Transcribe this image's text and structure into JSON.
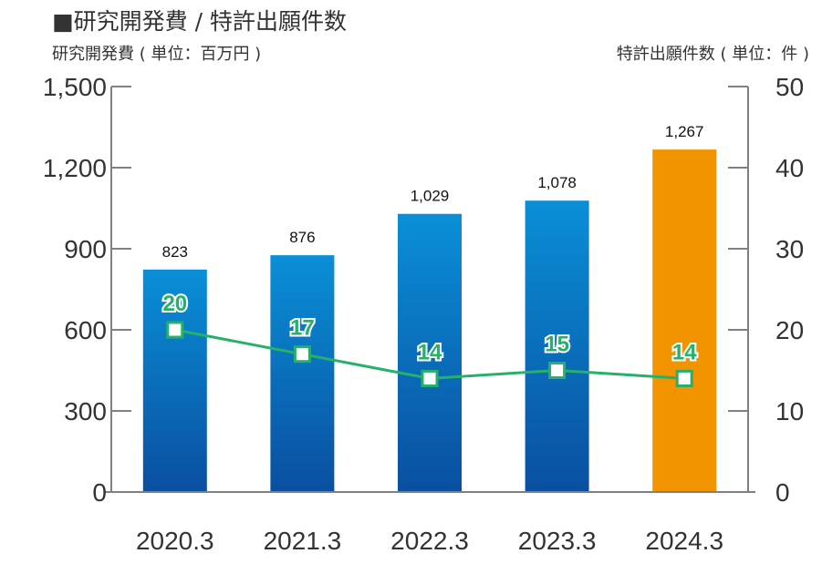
{
  "chart_data": {
    "type": "bar+line",
    "title": "■研究開発費 / 特許出願件数",
    "y_left_label": "研究開発費 ( 単位：百万円 )",
    "y_right_label": "特許出願件数 ( 単位：件 )",
    "categories": [
      "2020.3",
      "2021.3",
      "2022.3",
      "2023.3",
      "2024.3"
    ],
    "series": [
      {
        "name": "研究開発費",
        "kind": "bar",
        "axis": "left",
        "values": [
          823,
          876,
          1029,
          1078,
          1267
        ],
        "labels": [
          "823",
          "876",
          "1,029",
          "1,078",
          "1,267"
        ]
      },
      {
        "name": "特許出願件数",
        "kind": "line",
        "axis": "right",
        "values": [
          20,
          17,
          14,
          15,
          14
        ],
        "labels": [
          "20",
          "17",
          "14",
          "15",
          "14"
        ]
      }
    ],
    "y_left_ticks": [
      "0",
      "300",
      "600",
      "900",
      "1,200",
      "1,500"
    ],
    "y_left_range": [
      0,
      1500
    ],
    "y_right_ticks": [
      "0",
      "10",
      "20",
      "30",
      "40",
      "50"
    ],
    "y_right_range": [
      0,
      50
    ],
    "highlight_index": 4,
    "colors": {
      "bar_top": "#0a8fd6",
      "bar_bottom": "#0a4fa0",
      "bar_highlight": "#f29400",
      "line": "#27b06a",
      "marker_fill": "#ffffff",
      "axis": "#808080",
      "text": "#333333"
    }
  }
}
